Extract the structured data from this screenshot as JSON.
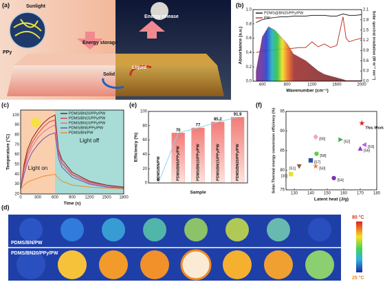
{
  "figure": {
    "a": {
      "label": "(a)",
      "sunlight": "Sunlight",
      "ppy": "PPy",
      "storage": "Energy storage",
      "release": "Energy release",
      "liquid": "Liquid",
      "solid": "Solid"
    },
    "d": {
      "label": "(d)",
      "row1": "PDMS/BN/PW",
      "row2": "PDMS/BN20/PPy/PW",
      "max": "80 °C",
      "min": "25 °C"
    }
  },
  "chart_data": [
    {
      "type": "line",
      "panel": "(b)",
      "x_label": "Wavenumber (cm⁻¹)",
      "y_label": "Absorbance (a.u.)",
      "y2_label": "Solar spectral irradiation (W m⁻² nm⁻¹)",
      "x": [
        300,
        400,
        500,
        600,
        700,
        800,
        900,
        1000,
        1100,
        1200,
        1300,
        1400,
        1500,
        1600,
        1700,
        1750,
        1800,
        1900,
        2000
      ],
      "xlim": [
        250,
        2000
      ],
      "xticks": [
        400,
        800,
        1200,
        1600,
        2000
      ],
      "ylim": [
        0,
        1
      ],
      "yticks": [
        {
          "value": 0,
          "label": "0.0"
        },
        {
          "value": 0.2,
          "label": "0.2"
        },
        {
          "value": 0.4,
          "label": "0.4"
        },
        {
          "value": 0.6,
          "label": "0.6"
        },
        {
          "value": 0.8,
          "label": "0.8"
        },
        {
          "value": 1,
          "label": "1.0"
        }
      ],
      "y2lim": [
        0,
        2.1
      ],
      "y2ticks": [
        {
          "value": 0,
          "label": "0.0"
        },
        {
          "value": 0.3,
          "label": "0.3"
        },
        {
          "value": 0.6,
          "label": "0.6"
        },
        {
          "value": 0.9,
          "label": "0.9"
        },
        1.2,
        1.5,
        1.8,
        2.1
      ],
      "series": [
        {
          "name": "PDMS@BN20/PPy/PW",
          "color": "#222222",
          "values": [
            0.82,
            0.86,
            0.88,
            0.89,
            0.9,
            0.9,
            0.91,
            0.91,
            0.91,
            0.92,
            0.92,
            0.92,
            0.91,
            0.91,
            0.94,
            0.93,
            0.92,
            0.92,
            0.93
          ]
        },
        {
          "name": "PW",
          "color": "#c0392b",
          "values": [
            0.4,
            0.42,
            0.43,
            0.44,
            0.45,
            0.45,
            0.46,
            0.47,
            0.47,
            0.55,
            0.48,
            0.52,
            0.47,
            0.5,
            0.9,
            0.6,
            0.55,
            0.58,
            0.6
          ]
        },
        {
          "axis": "y2",
          "color": "#8b4a4a",
          "values": [
            0.3,
            1.3,
            1.6,
            1.5,
            1.3,
            1.1,
            0.8,
            0.7,
            0.6,
            0.45,
            0.3,
            0.2,
            0.15,
            0.1,
            0.05,
            0.02,
            0.02,
            0.02,
            0.02
          ]
        }
      ]
    },
    {
      "type": "line",
      "panel": "(c)",
      "x_label": "Time (s)",
      "y_label": "Temperature (°C)",
      "x": [
        0,
        60,
        120,
        200,
        300,
        400,
        500,
        600,
        660,
        720,
        900,
        1200,
        1500,
        1800
      ],
      "xlim": [
        0,
        1800
      ],
      "xticks": [
        0,
        300,
        600,
        900,
        1200,
        1500,
        1800
      ],
      "ylim": [
        20,
        105
      ],
      "yticks": [
        20,
        30,
        40,
        50,
        60,
        70,
        80,
        90,
        100
      ],
      "regions": [
        {
          "xlim": [
            0,
            600
          ],
          "color": "#f9cfae",
          "label": "Light on"
        },
        {
          "xlim": [
            600,
            1800
          ],
          "color": "#a8dcd6",
          "label": "Light off"
        }
      ],
      "series": [
        {
          "name": "PDMS/BN20/PPy/PW",
          "color": "#8b1a1a",
          "values": [
            25,
            50,
            65,
            76,
            85,
            92,
            97,
            100,
            65,
            55,
            42,
            33,
            29,
            27
          ]
        },
        {
          "name": "PDMS/BN15/PPy/PW",
          "color": "#e0404a",
          "values": [
            25,
            47,
            61,
            72,
            81,
            88,
            93,
            95,
            62,
            52,
            40,
            32,
            28,
            26
          ]
        },
        {
          "name": "PDMS/BN10/PPy/PW",
          "color": "#d96fa0",
          "values": [
            25,
            44,
            57,
            68,
            77,
            83,
            87,
            90,
            60,
            50,
            39,
            31,
            28,
            26
          ]
        },
        {
          "name": "PDMS/BN5/PPy/PW",
          "color": "#6a4fb0",
          "values": [
            25,
            40,
            52,
            62,
            70,
            76,
            80,
            82,
            56,
            47,
            37,
            30,
            27,
            26
          ]
        },
        {
          "name": "PDMS/BN/PW",
          "color": "#f08a24",
          "values": [
            25,
            29,
            32,
            34,
            36,
            38,
            39,
            40,
            36,
            33,
            29,
            27,
            26,
            25
          ]
        }
      ]
    },
    {
      "type": "bar",
      "panel": "(e)",
      "x_label": "Sample",
      "y_label": "Efficiency (%)",
      "color": "#f28b82",
      "line_color": "#8fd3e8",
      "categories": [
        "PDMS/BN/PW",
        "PDMS/BN5/PPy/PW",
        "PDMS/BN10/PPy/PW",
        "PDMS/BN15/PPy/PW",
        "PDMS/BN20/PPy/PW"
      ],
      "values": [
        0,
        70,
        77,
        85.2,
        91.9
      ],
      "ylim": [
        0,
        100
      ],
      "yticks": [
        0,
        20,
        40,
        60,
        80,
        100
      ]
    },
    {
      "type": "scatter",
      "panel": "(f)",
      "x_label": "Latent heat (J/g)",
      "y_label": "Solar-Thermal energy conversion efficiency (%)",
      "xlim": [
        125,
        180
      ],
      "xticks": [
        130,
        140,
        150,
        160,
        170,
        180
      ],
      "ylim": [
        75,
        95
      ],
      "yticks": [
        75,
        80,
        85,
        90,
        95
      ],
      "series": [
        {
          "name": "[55]",
          "color": "#f4a3b5",
          "marker": "diamond",
          "x": [
            143
          ],
          "values": [
            88.5
          ]
        },
        {
          "name": "[52]",
          "color": "#4caf50",
          "marker": "triangle-right",
          "x": [
            158
          ],
          "values": [
            87.8
          ]
        },
        {
          "name": "[58]",
          "color": "#66cc44",
          "marker": "circle",
          "x": [
            143.5
          ],
          "values": [
            84.2
          ]
        },
        {
          "name": "[57]",
          "color": "#2b4fa8",
          "marker": "square",
          "x": [
            140
          ],
          "values": [
            82.5
          ]
        },
        {
          "name": "[51]",
          "color": "#8b5a3c",
          "marker": "triangle-down",
          "x": [
            133
          ],
          "values": [
            81
          ]
        },
        {
          "name": "[50]",
          "color": "#f07830",
          "marker": "star",
          "x": [
            143
          ],
          "values": [
            81
          ]
        },
        {
          "name": "[30]",
          "color": "#e8e030",
          "marker": "square",
          "x": [
            128
          ],
          "values": [
            79
          ]
        },
        {
          "name": "[54]",
          "color": "#8030b0",
          "marker": "circle",
          "x": [
            154
          ],
          "values": [
            78
          ]
        },
        {
          "name": "[56]",
          "color": "#9040c0",
          "marker": "triangle",
          "x": [
            170
          ],
          "values": [
            85.5
          ]
        },
        {
          "name": "[53]",
          "color": "#c060e0",
          "marker": "triangle-left",
          "x": [
            172.5
          ],
          "values": [
            86.5
          ]
        },
        {
          "name": "This Work",
          "color": "#d02020",
          "marker": "star",
          "x": [
            171
          ],
          "values": [
            92
          ]
        }
      ]
    }
  ]
}
